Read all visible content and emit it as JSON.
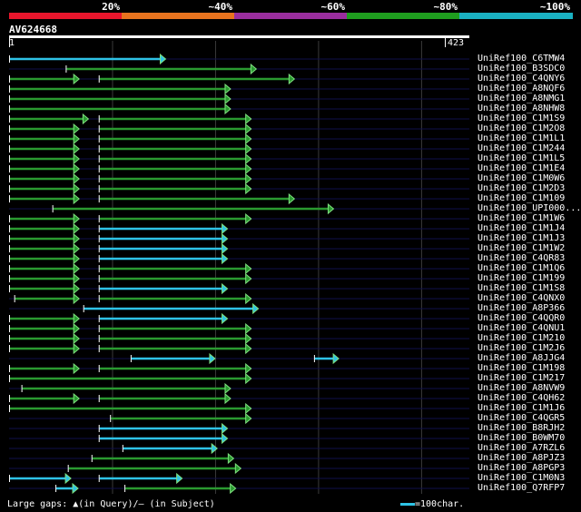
{
  "scale": {
    "labels": [
      "20%",
      "~40%",
      "~60%",
      "~80%",
      "~100%"
    ],
    "colors": [
      "#e8162c",
      "#e8731e",
      "#9a2e9e",
      "#1f9e1f",
      "#1ab1c2"
    ]
  },
  "query": {
    "title": "AV624668",
    "start": "1",
    "end": "423",
    "length": 423
  },
  "colors": {
    "green": "#2a9a30",
    "cyan": "#2ec3e6",
    "head": "#7fe07f",
    "grid": "#3a3a3a",
    "gap": "#8888ff"
  },
  "hits": [
    {
      "label": "UniRef100_C6TMW4",
      "segs": [
        [
          0,
          152,
          "c"
        ]
      ]
    },
    {
      "label": "UniRef100_B3SDC0",
      "segs": [
        [
          55,
          240,
          "g"
        ]
      ]
    },
    {
      "label": "UniRef100_C4QNY6",
      "segs": [
        [
          0,
          68,
          "g"
        ],
        [
          87,
          277,
          "g"
        ]
      ]
    },
    {
      "label": "UniRef100_A8NQF6",
      "segs": [
        [
          0,
          215,
          "g"
        ]
      ]
    },
    {
      "label": "UniRef100_A8NMG1",
      "segs": [
        [
          0,
          215,
          "g"
        ]
      ]
    },
    {
      "label": "UniRef100_A8NHW8",
      "segs": [
        [
          0,
          215,
          "g"
        ]
      ]
    },
    {
      "label": "UniRef100_C1M1S9",
      "segs": [
        [
          0,
          77,
          "g"
        ],
        [
          87,
          235,
          "g"
        ]
      ]
    },
    {
      "label": "UniRef100_C1M2O8",
      "segs": [
        [
          0,
          68,
          "g"
        ],
        [
          87,
          235,
          "g"
        ]
      ]
    },
    {
      "label": "UniRef100_C1M1L1",
      "segs": [
        [
          0,
          68,
          "g"
        ],
        [
          87,
          235,
          "g"
        ]
      ]
    },
    {
      "label": "UniRef100_C1M244",
      "segs": [
        [
          0,
          68,
          "g"
        ],
        [
          87,
          235,
          "g"
        ]
      ]
    },
    {
      "label": "UniRef100_C1M1L5",
      "segs": [
        [
          0,
          68,
          "g"
        ],
        [
          87,
          235,
          "g"
        ]
      ]
    },
    {
      "label": "UniRef100_C1M1E4",
      "segs": [
        [
          0,
          68,
          "g"
        ],
        [
          87,
          235,
          "g"
        ]
      ]
    },
    {
      "label": "UniRef100_C1M0W6",
      "segs": [
        [
          0,
          68,
          "g"
        ],
        [
          87,
          235,
          "g"
        ]
      ]
    },
    {
      "label": "UniRef100_C1M2D3",
      "segs": [
        [
          0,
          68,
          "g"
        ],
        [
          87,
          235,
          "g"
        ]
      ]
    },
    {
      "label": "UniRef100_C1M109",
      "segs": [
        [
          0,
          68,
          "g"
        ],
        [
          87,
          277,
          "g"
        ]
      ]
    },
    {
      "label": "UniRef100_UPI000...",
      "segs": [
        [
          42,
          315,
          "g"
        ]
      ]
    },
    {
      "label": "UniRef100_C1M1W6",
      "segs": [
        [
          0,
          68,
          "g"
        ],
        [
          87,
          235,
          "g"
        ]
      ]
    },
    {
      "label": "UniRef100_C1M1J4",
      "segs": [
        [
          0,
          68,
          "g"
        ],
        [
          87,
          212,
          "c"
        ]
      ]
    },
    {
      "label": "UniRef100_C1M1J3",
      "segs": [
        [
          0,
          68,
          "g"
        ],
        [
          87,
          212,
          "c"
        ]
      ]
    },
    {
      "label": "UniRef100_C1M1W2",
      "segs": [
        [
          0,
          68,
          "g"
        ],
        [
          87,
          212,
          "c"
        ]
      ]
    },
    {
      "label": "UniRef100_C4QR83",
      "segs": [
        [
          0,
          68,
          "g"
        ],
        [
          87,
          212,
          "c"
        ]
      ]
    },
    {
      "label": "UniRef100_C1M1Q6",
      "segs": [
        [
          0,
          68,
          "g"
        ],
        [
          87,
          235,
          "g"
        ]
      ]
    },
    {
      "label": "UniRef100_C1M199",
      "segs": [
        [
          0,
          68,
          "g"
        ],
        [
          87,
          235,
          "g"
        ]
      ]
    },
    {
      "label": "UniRef100_C1M1S8",
      "segs": [
        [
          0,
          68,
          "g"
        ],
        [
          87,
          212,
          "c"
        ]
      ]
    },
    {
      "label": "UniRef100_C4QNX0",
      "segs": [
        [
          5,
          68,
          "g"
        ],
        [
          87,
          235,
          "g"
        ]
      ]
    },
    {
      "label": "UniRef100_A8P366",
      "segs": [
        [
          72,
          242,
          "c"
        ]
      ]
    },
    {
      "label": "UniRef100_C4QQR0",
      "segs": [
        [
          0,
          68,
          "g"
        ],
        [
          87,
          212,
          "c"
        ]
      ]
    },
    {
      "label": "UniRef100_C4QNU1",
      "segs": [
        [
          0,
          68,
          "g"
        ],
        [
          87,
          235,
          "g"
        ]
      ]
    },
    {
      "label": "UniRef100_C1M210",
      "segs": [
        [
          0,
          68,
          "g"
        ],
        [
          87,
          235,
          "g"
        ]
      ]
    },
    {
      "label": "UniRef100_C1M2J6",
      "segs": [
        [
          0,
          68,
          "g"
        ],
        [
          87,
          235,
          "g"
        ]
      ]
    },
    {
      "label": "UniRef100_A8JJG4",
      "segs": [
        [
          118,
          200,
          "c"
        ],
        [
          296,
          320,
          "c"
        ]
      ]
    },
    {
      "label": "UniRef100_C1M198",
      "segs": [
        [
          0,
          68,
          "g"
        ],
        [
          87,
          235,
          "g"
        ]
      ]
    },
    {
      "label": "UniRef100_C1M217",
      "segs": [
        [
          0,
          235,
          "g"
        ]
      ]
    },
    {
      "label": "UniRef100_A8NVW9",
      "segs": [
        [
          12,
          215,
          "g"
        ]
      ]
    },
    {
      "label": "UniRef100_C4QH62",
      "segs": [
        [
          0,
          68,
          "g"
        ],
        [
          87,
          215,
          "g"
        ]
      ]
    },
    {
      "label": "UniRef100_C1M1J6",
      "segs": [
        [
          0,
          235,
          "g"
        ]
      ]
    },
    {
      "label": "UniRef100_C4QGR5",
      "segs": [
        [
          98,
          235,
          "g"
        ]
      ]
    },
    {
      "label": "UniRef100_B8RJH2",
      "segs": [
        [
          87,
          212,
          "c"
        ]
      ]
    },
    {
      "label": "UniRef100_B0WM70",
      "segs": [
        [
          87,
          212,
          "c"
        ]
      ]
    },
    {
      "label": "UniRef100_A7RZL6",
      "segs": [
        [
          110,
          202,
          "c"
        ]
      ]
    },
    {
      "label": "UniRef100_A8PJZ3",
      "segs": [
        [
          80,
          218,
          "g"
        ]
      ]
    },
    {
      "label": "UniRef100_A8PGP3",
      "segs": [
        [
          57,
          225,
          "g"
        ]
      ]
    },
    {
      "label": "UniRef100_C1M0N3",
      "segs": [
        [
          0,
          60,
          "c"
        ],
        [
          87,
          168,
          "c"
        ]
      ]
    },
    {
      "label": "UniRef100_Q7RFP7",
      "segs": [
        [
          45,
          67,
          "c"
        ],
        [
          112,
          220,
          "g"
        ]
      ]
    }
  ],
  "footer": {
    "gaps_text": "Large gaps: ▲(in Query)/– (in Subject)",
    "legend_text": "=100char."
  }
}
